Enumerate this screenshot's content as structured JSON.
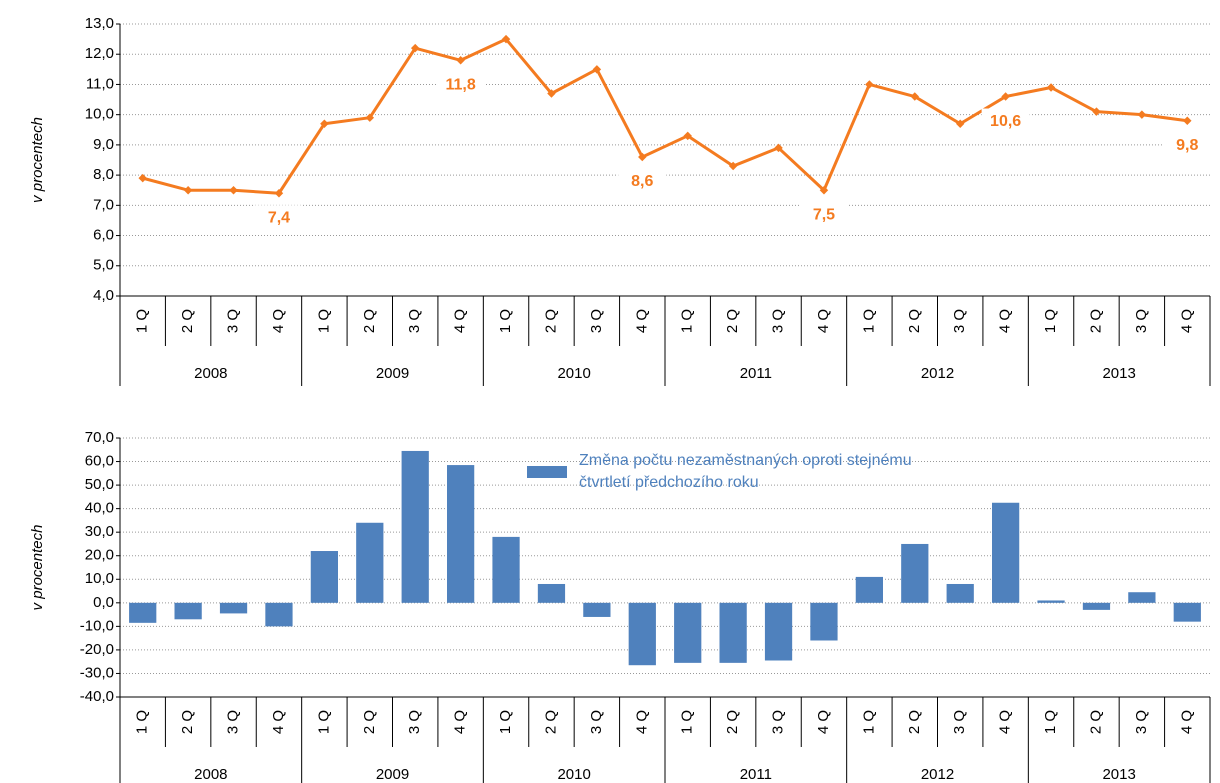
{
  "chart_data": [
    {
      "type": "line",
      "ylabel": "v procentech",
      "categories": [
        "1 Q",
        "2 Q",
        "3 Q",
        "4 Q",
        "1 Q",
        "2 Q",
        "3 Q",
        "4 Q",
        "1 Q",
        "2 Q",
        "3 Q",
        "4 Q",
        "1 Q",
        "2 Q",
        "3 Q",
        "4 Q",
        "1 Q",
        "2 Q",
        "3 Q",
        "4 Q",
        "1 Q",
        "2 Q",
        "3 Q",
        "4 Q"
      ],
      "x_groups": [
        "2008",
        "2009",
        "2010",
        "2011",
        "2012",
        "2013"
      ],
      "values": [
        7.9,
        7.5,
        7.5,
        7.4,
        9.7,
        9.9,
        12.2,
        11.8,
        12.5,
        10.7,
        11.5,
        8.6,
        9.3,
        8.3,
        8.9,
        7.5,
        11.0,
        10.6,
        9.7,
        10.6,
        10.9,
        10.1,
        10.0,
        9.8
      ],
      "value_labels": [
        null,
        null,
        null,
        "7,4",
        null,
        null,
        null,
        "11,8",
        null,
        null,
        null,
        "8,6",
        null,
        null,
        null,
        "7,5",
        null,
        null,
        null,
        "10,6",
        null,
        null,
        null,
        "9,8"
      ],
      "color": "#f47b20",
      "ylim": [
        4,
        13
      ],
      "yticks": [
        {
          "value": 4,
          "label": "4,0"
        },
        {
          "value": 5,
          "label": "5,0"
        },
        {
          "value": 6,
          "label": "6,0"
        },
        {
          "value": 7,
          "label": "7,0"
        },
        {
          "value": 8,
          "label": "8,0"
        },
        {
          "value": 9,
          "label": "9,0"
        },
        {
          "value": 10,
          "label": "10,0"
        },
        {
          "value": 11,
          "label": "11,0"
        },
        {
          "value": 12,
          "label": "12,0"
        },
        {
          "value": 13,
          "label": "13,0"
        }
      ],
      "grid": true
    },
    {
      "type": "bar",
      "ylabel": "v procentech",
      "categories": [
        "1 Q",
        "2 Q",
        "3 Q",
        "4 Q",
        "1 Q",
        "2 Q",
        "3 Q",
        "4 Q",
        "1 Q",
        "2 Q",
        "3 Q",
        "4 Q",
        "1 Q",
        "2 Q",
        "3 Q",
        "4 Q",
        "1 Q",
        "2 Q",
        "3 Q",
        "4 Q",
        "1 Q",
        "2 Q",
        "3 Q",
        "4 Q"
      ],
      "x_groups": [
        "2008",
        "2009",
        "2010",
        "2011",
        "2012",
        "2013"
      ],
      "series": [
        {
          "name": "Změna počtu nezaměstnaných oproti stejnému čtvrtletí předchozího roku",
          "color": "#4f81bd",
          "values": [
            -8.5,
            -7,
            -4.5,
            -10,
            22,
            34,
            64.5,
            58.5,
            28,
            8,
            -6,
            -26.5,
            -25.5,
            -25.5,
            -24.5,
            -16,
            11,
            25,
            8,
            42.5,
            1,
            -3,
            4.5,
            -8
          ]
        }
      ],
      "ylim": [
        -40,
        70
      ],
      "yticks": [
        {
          "value": -40,
          "label": "-40,0"
        },
        {
          "value": -30,
          "label": "-30,0"
        },
        {
          "value": -20,
          "label": "-20,0"
        },
        {
          "value": -10,
          "label": "-10,0"
        },
        {
          "value": 0,
          "label": "0,0"
        },
        {
          "value": 10,
          "label": "10,0"
        },
        {
          "value": 20,
          "label": "20,0"
        },
        {
          "value": 30,
          "label": "30,0"
        },
        {
          "value": 40,
          "label": "40,0"
        },
        {
          "value": 50,
          "label": "50,0"
        },
        {
          "value": 60,
          "label": "60,0"
        },
        {
          "value": 70,
          "label": "70,0"
        }
      ],
      "grid": true,
      "legend": "top"
    }
  ]
}
